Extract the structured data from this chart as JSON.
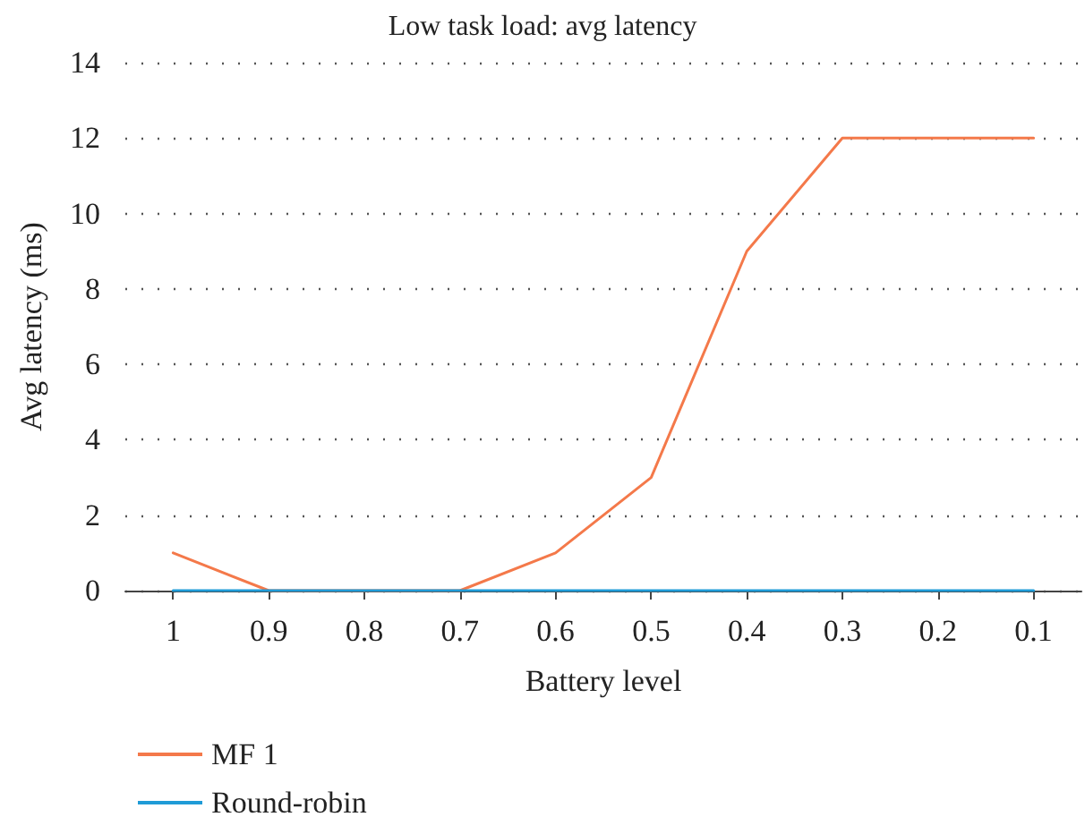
{
  "chart_data": {
    "type": "line",
    "title": "Low task load: avg latency",
    "xlabel": "Battery level",
    "ylabel": "Avg latency (ms)",
    "categories": [
      "1",
      "0.9",
      "0.8",
      "0.7",
      "0.6",
      "0.5",
      "0.4",
      "0.3",
      "0.2",
      "0.1"
    ],
    "series": [
      {
        "name": "MF 1",
        "color": "#f4794a",
        "values": [
          1,
          0,
          0,
          0,
          1,
          3,
          9,
          12,
          12,
          12
        ]
      },
      {
        "name": "Round-robin",
        "color": "#1f9bd7",
        "values": [
          0,
          0,
          0,
          0,
          0,
          0,
          0,
          0,
          0,
          0
        ]
      }
    ],
    "ylim": [
      0,
      14
    ],
    "yticks": [
      0,
      2,
      4,
      6,
      8,
      10,
      12,
      14
    ],
    "grid": "y",
    "legend": "bottom left",
    "marker": "none",
    "line_style": "solid"
  }
}
